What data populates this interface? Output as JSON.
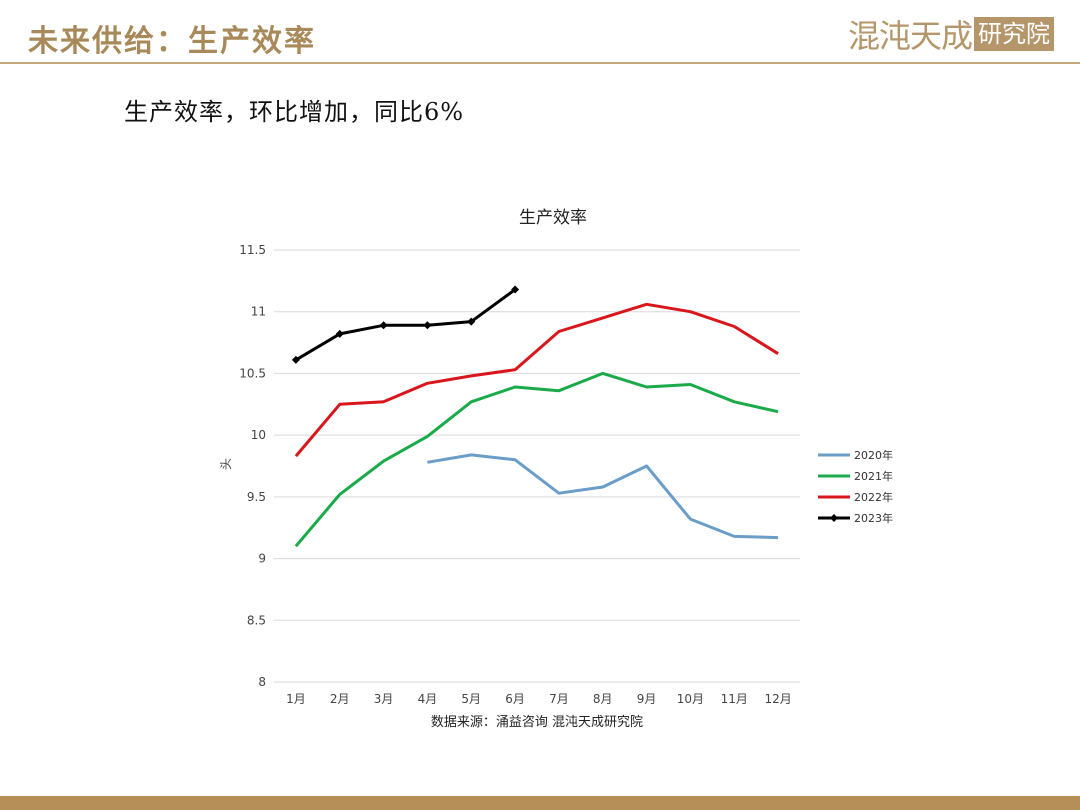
{
  "header": {
    "title": "未来供给：生产效率",
    "logo_text": "混沌天成",
    "logo_box_text": "研究院"
  },
  "subtitle": "生产效率，环比增加，同比6%",
  "colors": {
    "gold": "#a88a5a",
    "series_2020": "#6a9ec8",
    "series_2021": "#1aaa4a",
    "series_2022": "#d9161c",
    "series_2023": "#000000"
  },
  "chart_data": {
    "type": "line",
    "title": "生产效率",
    "xlabel": "",
    "ylabel": "头",
    "source_note": "数据来源：涌益咨询 混沌天成研究院",
    "categories": [
      "1月",
      "2月",
      "3月",
      "4月",
      "5月",
      "6月",
      "7月",
      "8月",
      "9月",
      "10月",
      "11月",
      "12月"
    ],
    "ylim": [
      8,
      11.5
    ],
    "yticks": [
      "8",
      "8.5",
      "9",
      "9.5",
      "10",
      "10.5",
      "11",
      "11.5"
    ],
    "grid": "horizontal",
    "legend_position": "right",
    "series": [
      {
        "name": "2020年",
        "color": "#6a9ec8",
        "marker": "none",
        "values": [
          null,
          null,
          null,
          9.78,
          9.84,
          9.8,
          9.53,
          9.58,
          9.75,
          9.32,
          9.18,
          9.17
        ]
      },
      {
        "name": "2021年",
        "color": "#1aaa4a",
        "marker": "none",
        "values": [
          9.1,
          9.52,
          9.79,
          9.99,
          10.27,
          10.39,
          10.36,
          10.5,
          10.39,
          10.41,
          10.27,
          10.19
        ]
      },
      {
        "name": "2022年",
        "color": "#d9161c",
        "marker": "none",
        "values": [
          9.83,
          10.25,
          10.27,
          10.42,
          10.48,
          10.53,
          10.84,
          10.95,
          11.06,
          11.0,
          10.88,
          10.66
        ]
      },
      {
        "name": "2023年",
        "color": "#000000",
        "marker": "diamond",
        "values": [
          10.61,
          10.82,
          10.89,
          10.89,
          10.92,
          11.18,
          null,
          null,
          null,
          null,
          null,
          null
        ]
      }
    ]
  }
}
